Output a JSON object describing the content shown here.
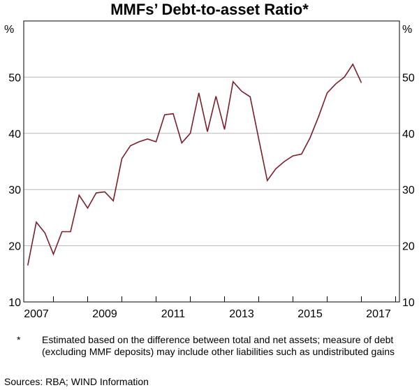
{
  "chart_data": {
    "type": "line",
    "title": "MMFs’ Debt-to-asset Ratio*",
    "ylabel_left": "%",
    "ylabel_right": "%",
    "ylim": [
      10,
      60
    ],
    "yticks": [
      10,
      20,
      30,
      40,
      50
    ],
    "xlim": [
      2006.5,
      2017.5
    ],
    "xticks": [
      2007,
      2009,
      2011,
      2013,
      2015,
      2017
    ],
    "grid": true,
    "line_color": "#7a1f2b",
    "series": [
      {
        "name": "Debt-to-asset ratio",
        "x_start": 2006.75,
        "x_step": 0.25,
        "values": [
          16.5,
          24.2,
          22.3,
          18.5,
          22.5,
          22.5,
          29,
          26.7,
          29.4,
          29.6,
          28,
          35.5,
          37.8,
          38.5,
          39,
          38.5,
          43.3,
          43.5,
          38.3,
          40,
          47.2,
          40.3,
          46.6,
          40.7,
          49.2,
          47.5,
          46.5,
          39,
          31.6,
          33.7,
          35,
          36,
          36.3,
          39.2,
          43,
          47.2,
          48.8,
          50,
          52.3,
          49
        ]
      }
    ]
  },
  "footnote": {
    "marker": "*",
    "text": "Estimated based on the difference between total and net assets; measure of debt (excluding MMF deposits) may include other liabilities such as undistributed gains"
  },
  "sources": "Sources: RBA; WIND Information"
}
